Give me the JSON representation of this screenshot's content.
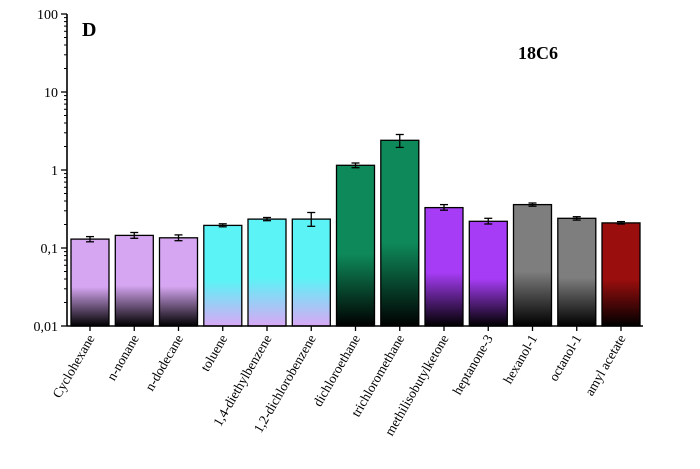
{
  "chart_data": {
    "type": "bar",
    "panel_label": "D",
    "title": "18C6",
    "xlabel": "",
    "ylabel": "",
    "y_scale": "log",
    "ylim": [
      0.01,
      100
    ],
    "y_ticks": [
      {
        "value": 100,
        "label": "100"
      },
      {
        "value": 10,
        "label": "10"
      },
      {
        "value": 1,
        "label": "1"
      },
      {
        "value": 0.1,
        "label": "0,1"
      },
      {
        "value": 0.01,
        "label": "0,01"
      }
    ],
    "categories": [
      "Cyclohexane",
      "n-nonane",
      "n-dodecane",
      "toluene",
      "1,4-diethylbenzene",
      "1,2-dichlorobenzene",
      "dichloroethane",
      "trichloromethane",
      "methilisobutylketone",
      "heptanone-3",
      "hexanol-1",
      "octanol-1",
      "amyl acetate"
    ],
    "values": [
      0.13,
      0.145,
      0.135,
      0.195,
      0.235,
      0.235,
      1.15,
      2.4,
      0.33,
      0.22,
      0.36,
      0.24,
      0.21
    ],
    "error_low": [
      0.12,
      0.133,
      0.124,
      0.187,
      0.224,
      0.19,
      1.07,
      1.95,
      0.305,
      0.203,
      0.343,
      0.228,
      0.203
    ],
    "error_high": [
      0.14,
      0.158,
      0.147,
      0.204,
      0.246,
      0.285,
      1.23,
      2.85,
      0.36,
      0.24,
      0.377,
      0.252,
      0.218
    ],
    "bar_groups": [
      {
        "categories": [
          0,
          1,
          2
        ],
        "top_color": "#d6a6f2",
        "bottom_color": "#000000"
      },
      {
        "categories": [
          3,
          4,
          5
        ],
        "top_color": "#5cf3f6",
        "bottom_color": "#d9a8f5"
      },
      {
        "categories": [
          6,
          7
        ],
        "top_color": "#0e8a5a",
        "bottom_color": "#000000"
      },
      {
        "categories": [
          8,
          9
        ],
        "top_color": "#a63cf5",
        "bottom_color": "#000000"
      },
      {
        "categories": [
          10,
          11
        ],
        "top_color": "#7e7e7e",
        "bottom_color": "#000000"
      },
      {
        "categories": [
          12
        ],
        "top_color": "#9a0e0e",
        "bottom_color": "#000000"
      }
    ],
    "grid": false,
    "legend": "none"
  }
}
